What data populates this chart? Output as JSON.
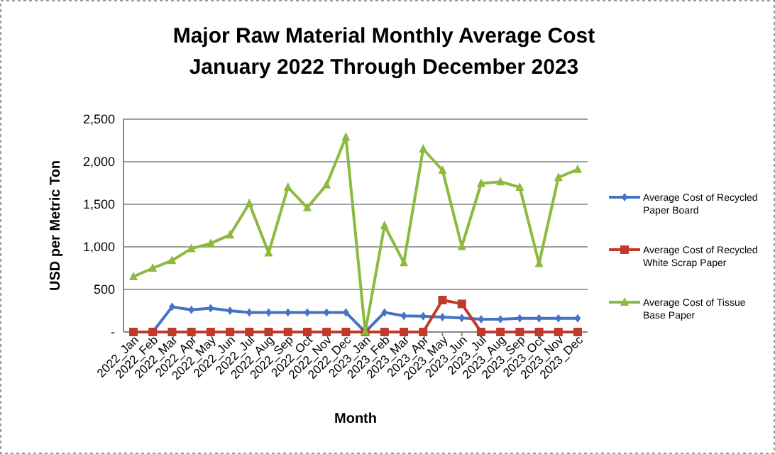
{
  "chart_data": {
    "type": "line",
    "title": "Major Raw Material Monthly Average Cost\nJanuary  2022 Through  December 2023",
    "xlabel": "Month",
    "ylabel": "USD per Metric Ton",
    "categories": [
      "2022_Jan",
      "2022_Feb",
      "2022_Mar",
      "2022_Apr",
      "2022_May",
      "2022_Jun",
      "2022_Jul",
      "2022_Aug",
      "2022_Sep",
      "2022_Oct",
      "2022_Nov",
      "2022_Dec",
      "2023_Jan",
      "2023_Feb",
      "2023_Mar",
      "2023_Apr",
      "2023_May",
      "2023_Jun",
      "2023_Jul",
      "2023_Aug",
      "2023_Sep",
      "2023_Oct",
      "2023_Nov",
      "2023_Dec"
    ],
    "series": [
      {
        "name": "Average Cost of Recycled Paper Board",
        "color": "#4472c4",
        "marker": "diamond",
        "values": [
          0,
          0,
          295,
          260,
          280,
          250,
          230,
          230,
          230,
          230,
          230,
          230,
          0,
          230,
          190,
          185,
          175,
          165,
          150,
          150,
          160,
          160,
          160,
          160
        ]
      },
      {
        "name": "Average Cost of Recycled White Scrap Paper",
        "color": "#c0392b",
        "marker": "square",
        "values": [
          0,
          0,
          0,
          0,
          0,
          0,
          0,
          0,
          0,
          0,
          0,
          0,
          0,
          0,
          0,
          0,
          375,
          330,
          0,
          0,
          0,
          0,
          0,
          0
        ]
      },
      {
        "name": "Average Cost of Tissue Base Paper",
        "color": "#8cba3f",
        "marker": "triangle",
        "values": [
          650,
          750,
          840,
          980,
          1040,
          1140,
          1510,
          930,
          1700,
          1460,
          1730,
          2290,
          0,
          1250,
          815,
          2150,
          1900,
          1005,
          1745,
          1765,
          1700,
          805,
          1815,
          1910
        ]
      }
    ],
    "ylim": [
      0,
      2500
    ],
    "yticks": [
      {
        "value": 0,
        "label": "-"
      },
      {
        "value": 500,
        "label": "500"
      },
      {
        "value": 1000,
        "label": "1,000"
      },
      {
        "value": 1500,
        "label": "1,500"
      },
      {
        "value": 2000,
        "label": "2,000"
      },
      {
        "value": 2500,
        "label": "2,500"
      }
    ],
    "grid": "y",
    "legend": "right"
  }
}
